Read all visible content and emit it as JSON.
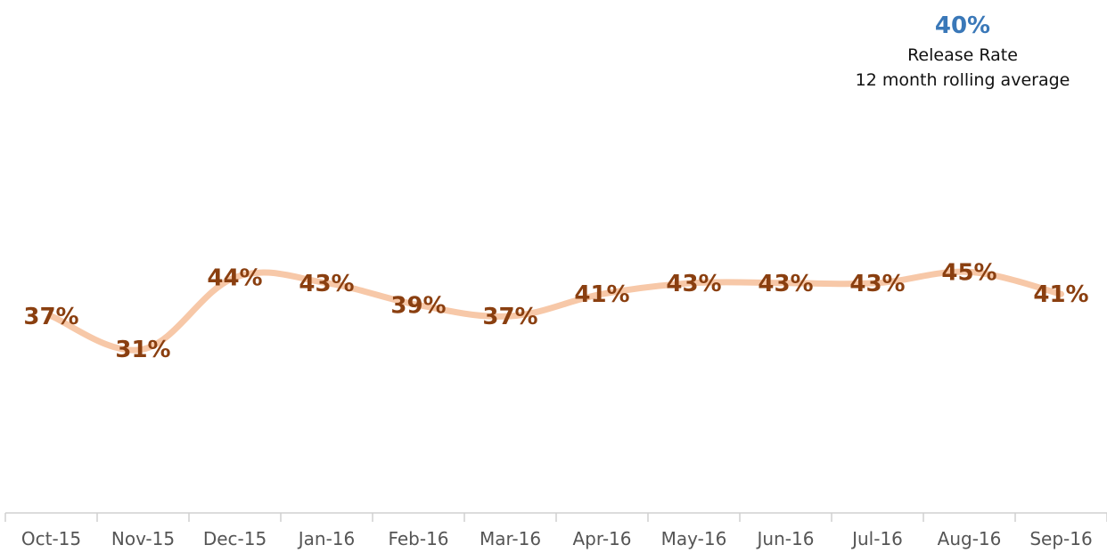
{
  "summary": {
    "value": "40%",
    "label": "Release Rate",
    "sublabel": "12 month rolling average"
  },
  "colors": {
    "line": "#f7c8a8",
    "data_label": "#8a3f10",
    "accent": "#3a78b8",
    "axis": "#d0d0d0",
    "tick_text": "#555555"
  },
  "chart_data": {
    "type": "line",
    "title": "",
    "xlabel": "",
    "ylabel": "",
    "categories": [
      "Oct-15",
      "Nov-15",
      "Dec-15",
      "Jan-16",
      "Feb-16",
      "Mar-16",
      "Apr-16",
      "May-16",
      "Jun-16",
      "Jul-16",
      "Aug-16",
      "Sep-16"
    ],
    "series": [
      {
        "values": [
          37,
          31,
          44,
          43,
          39,
          37,
          41,
          43,
          43,
          43,
          45,
          41
        ],
        "labels": [
          "37%",
          "31%",
          "44%",
          "43%",
          "39%",
          "37%",
          "41%",
          "43%",
          "43%",
          "43%",
          "45%",
          "41%"
        ]
      }
    ],
    "ylim": [
      0,
      100
    ],
    "grid": false,
    "legend": "none",
    "smooth": true
  }
}
